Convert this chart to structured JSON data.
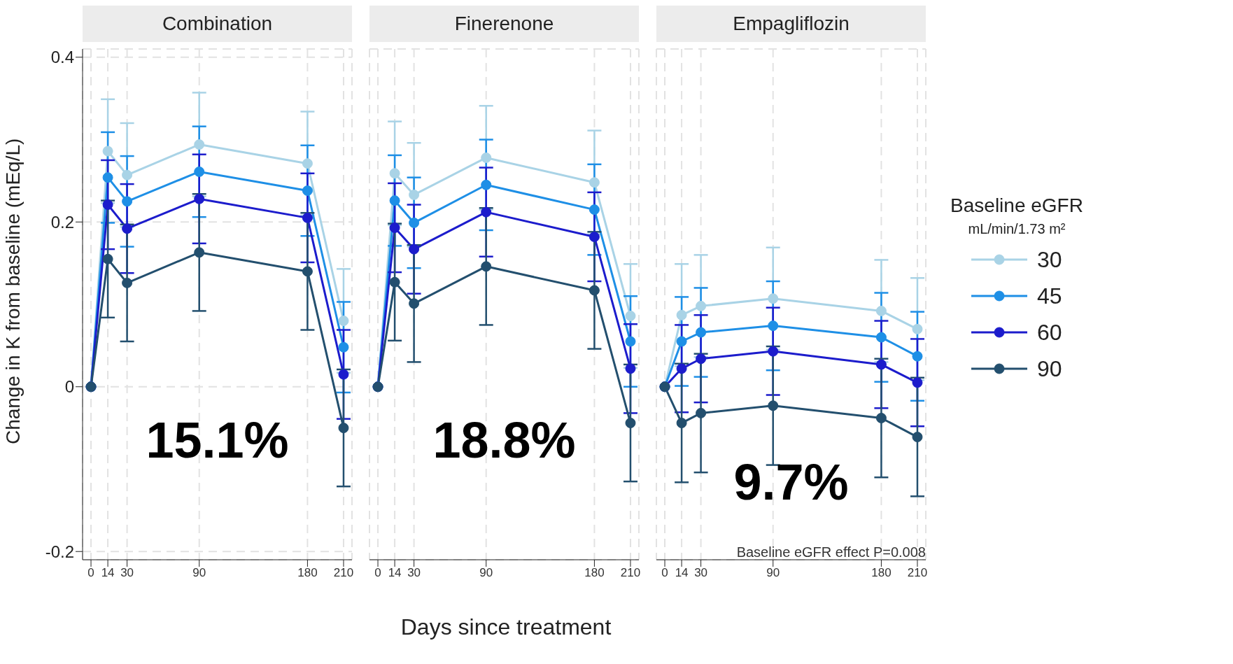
{
  "chart_data": [
    {
      "type": "line",
      "title": "Combination",
      "ylabel": "Change in K from baseline (mEq/L)",
      "x": [
        0,
        14,
        30,
        90,
        180,
        210
      ],
      "xlim": [
        -7,
        217
      ],
      "xticks": [
        0,
        14,
        30,
        90,
        180,
        210
      ],
      "ylim": [
        -0.21,
        0.41
      ],
      "yticks": [
        -0.2,
        0,
        0.2,
        0.4
      ],
      "grid": true,
      "marker": "circle",
      "line_style": "solid",
      "series": [
        {
          "color": "#a9d3e6",
          "values": [
            0,
            0.286,
            0.257,
            0.294,
            0.271,
            0.08
          ],
          "errors": [
            null,
            0.063,
            0.063,
            0.063,
            0.063,
            0.063
          ]
        },
        {
          "color": "#1e8fe6",
          "values": [
            0,
            0.254,
            0.225,
            0.261,
            0.238,
            0.048
          ],
          "errors": [
            null,
            0.055,
            0.055,
            0.055,
            0.055,
            0.055
          ]
        },
        {
          "color": "#1c1ccc",
          "values": [
            0,
            0.221,
            0.192,
            0.228,
            0.205,
            0.015
          ],
          "errors": [
            null,
            0.054,
            0.054,
            0.054,
            0.054,
            0.054
          ]
        },
        {
          "color": "#234f6e",
          "values": [
            0,
            0.155,
            0.126,
            0.163,
            0.14,
            -0.05
          ],
          "errors": [
            null,
            0.071,
            0.071,
            0.071,
            0.071,
            0.071
          ]
        }
      ],
      "annotations": [
        "15.1%"
      ]
    },
    {
      "type": "line",
      "title": "Finerenone",
      "xlabel": "Days since treatment",
      "x": [
        0,
        14,
        30,
        90,
        180,
        210
      ],
      "xlim": [
        -7,
        217
      ],
      "xticks": [
        0,
        14,
        30,
        90,
        180,
        210
      ],
      "ylim": [
        -0.21,
        0.41
      ],
      "tick_labels": "x",
      "grid": true,
      "marker": "circle",
      "line_style": "solid",
      "series": [
        {
          "color": "#a9d3e6",
          "values": [
            0,
            0.259,
            0.233,
            0.278,
            0.248,
            0.086
          ],
          "errors": [
            null,
            0.063,
            0.063,
            0.063,
            0.063,
            0.063
          ]
        },
        {
          "color": "#1e8fe6",
          "values": [
            0,
            0.226,
            0.199,
            0.245,
            0.215,
            0.055
          ],
          "errors": [
            null,
            0.055,
            0.055,
            0.055,
            0.055,
            0.055
          ]
        },
        {
          "color": "#1c1ccc",
          "values": [
            0,
            0.193,
            0.167,
            0.212,
            0.182,
            0.022
          ],
          "errors": [
            null,
            0.054,
            0.054,
            0.054,
            0.054,
            0.054
          ]
        },
        {
          "color": "#234f6e",
          "values": [
            0,
            0.127,
            0.101,
            0.146,
            0.117,
            -0.044
          ],
          "errors": [
            null,
            0.071,
            0.071,
            0.071,
            0.071,
            0.071
          ]
        }
      ],
      "annotations": [
        "18.8%"
      ]
    },
    {
      "type": "line",
      "title": "Empagliflozin",
      "x": [
        0,
        14,
        30,
        90,
        180,
        210
      ],
      "xlim": [
        -7,
        217
      ],
      "xticks": [
        0,
        14,
        30,
        90,
        180,
        210
      ],
      "ylim": [
        -0.21,
        0.41
      ],
      "tick_labels": "x",
      "grid": true,
      "marker": "circle",
      "line_style": "solid",
      "legend": "right",
      "legend_title": "Baseline eGFR\nmL/min/1.73 m²",
      "series": [
        {
          "name": "30",
          "color": "#a9d3e6",
          "values": [
            0,
            0.087,
            0.098,
            0.107,
            0.092,
            0.07
          ],
          "errors": [
            null,
            0.062,
            0.062,
            0.062,
            0.062,
            0.062
          ]
        },
        {
          "name": "45",
          "color": "#1e8fe6",
          "values": [
            0,
            0.055,
            0.066,
            0.074,
            0.06,
            0.037
          ],
          "errors": [
            null,
            0.054,
            0.054,
            0.054,
            0.054,
            0.054
          ]
        },
        {
          "name": "60",
          "color": "#1c1ccc",
          "values": [
            0,
            0.022,
            0.034,
            0.043,
            0.027,
            0.005
          ],
          "errors": [
            null,
            0.053,
            0.053,
            0.053,
            0.053,
            0.053
          ]
        },
        {
          "name": "90",
          "color": "#234f6e",
          "values": [
            0,
            -0.044,
            -0.032,
            -0.023,
            -0.038,
            -0.061
          ],
          "errors": [
            null,
            0.072,
            0.072,
            0.072,
            0.072,
            0.072
          ]
        }
      ],
      "annotations": [
        "9.7%",
        "Baseline eGFR effect P=0.008"
      ]
    }
  ]
}
